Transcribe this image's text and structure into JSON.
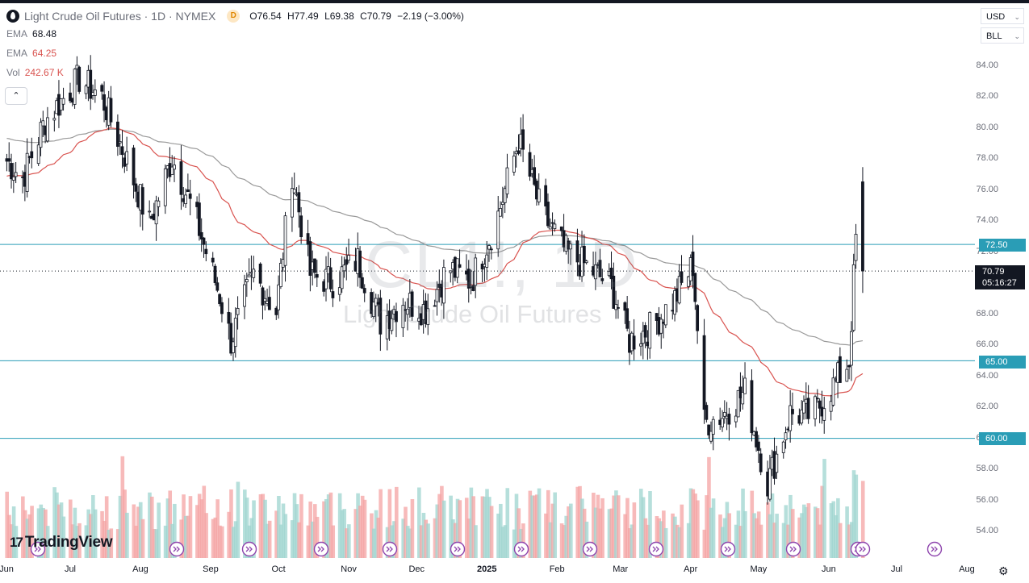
{
  "header": {
    "symbol_title": "Light Crude Oil Futures · 1D · NYMEX",
    "badge": "D",
    "ohlc": {
      "open_label": "O",
      "open": "76.54",
      "high_label": "H",
      "high": "77.49",
      "low_label": "L",
      "low": "69.38",
      "close_label": "C",
      "close": "70.79",
      "change": "−2.19 (−3.00%)"
    },
    "indicators": [
      {
        "name": "EMA",
        "value": "68.48",
        "color": "#787b86"
      },
      {
        "name": "EMA",
        "value": "64.25",
        "color": "#d9534f"
      },
      {
        "name": "Vol",
        "value": "242.67 K",
        "color": "#787b86"
      }
    ],
    "collapse_icon": "chevron-up-icon"
  },
  "scale_controls": {
    "currency": "USD",
    "unit": "BLL"
  },
  "watermark": {
    "ticker": "CL1!, 1D",
    "name": "Light Crude Oil Futures"
  },
  "price_axis": {
    "ticks": [
      "84.00",
      "82.00",
      "80.00",
      "78.00",
      "76.00",
      "74.00",
      "72.00",
      "70.00",
      "68.00",
      "66.00",
      "64.00",
      "62.00",
      "60.00",
      "58.00",
      "56.00",
      "54.00"
    ]
  },
  "horizontal_lines": {
    "levels": [
      "72.50",
      "65.00",
      "60.00"
    ],
    "color": "#2a9db6"
  },
  "current_price": {
    "price": "70.79",
    "countdown": "05:16:27"
  },
  "time_axis": {
    "labels": [
      "Jun",
      "Jul",
      "Aug",
      "Sep",
      "Oct",
      "Nov",
      "Dec",
      "2025",
      "Feb",
      "Mar",
      "Apr",
      "May",
      "Jun",
      "Jul",
      "Aug"
    ]
  },
  "colors": {
    "up": "#131722",
    "down": "#131722",
    "ema_long": "#999999",
    "ema_short": "#d9534f",
    "vol_up": "#9ed4cf",
    "vol_down": "#f4a3a3"
  },
  "branding": {
    "logo_text": "TradingView",
    "logo_mark": "17"
  },
  "chart_data": {
    "type": "candlestick",
    "symbol": "CL1!",
    "timeframe": "1D",
    "ylim": [
      53,
      86
    ],
    "key_levels": [
      72.5,
      65.0,
      60.0
    ],
    "last_bar": {
      "open": 76.54,
      "high": 77.49,
      "low": 69.38,
      "close": 70.79
    },
    "close_path": [
      {
        "date": "2024-06-01",
        "close": 78.2
      },
      {
        "date": "2024-06-10",
        "close": 76.8
      },
      {
        "date": "2024-06-20",
        "close": 80.5
      },
      {
        "date": "2024-07-05",
        "close": 83.2
      },
      {
        "date": "2024-07-15",
        "close": 82.0
      },
      {
        "date": "2024-07-25",
        "close": 78.3
      },
      {
        "date": "2024-08-05",
        "close": 73.8
      },
      {
        "date": "2024-08-15",
        "close": 78.1
      },
      {
        "date": "2024-08-25",
        "close": 74.4
      },
      {
        "date": "2024-09-05",
        "close": 69.2
      },
      {
        "date": "2024-09-10",
        "close": 66.3
      },
      {
        "date": "2024-09-20",
        "close": 70.6
      },
      {
        "date": "2024-09-30",
        "close": 68.2
      },
      {
        "date": "2024-10-07",
        "close": 77.2
      },
      {
        "date": "2024-10-15",
        "close": 70.6
      },
      {
        "date": "2024-10-25",
        "close": 70.1
      },
      {
        "date": "2024-11-05",
        "close": 71.5
      },
      {
        "date": "2024-11-15",
        "close": 67.5
      },
      {
        "date": "2024-11-25",
        "close": 68.9
      },
      {
        "date": "2024-12-05",
        "close": 68.3
      },
      {
        "date": "2024-12-15",
        "close": 71.0
      },
      {
        "date": "2024-12-25",
        "close": 70.1
      },
      {
        "date": "2025-01-05",
        "close": 73.9
      },
      {
        "date": "2025-01-15",
        "close": 79.2
      },
      {
        "date": "2025-01-25",
        "close": 74.6
      },
      {
        "date": "2025-02-05",
        "close": 72.0
      },
      {
        "date": "2025-02-15",
        "close": 71.0
      },
      {
        "date": "2025-02-25",
        "close": 69.8
      },
      {
        "date": "2025-03-05",
        "close": 66.3
      },
      {
        "date": "2025-03-15",
        "close": 67.2
      },
      {
        "date": "2025-03-25",
        "close": 69.0
      },
      {
        "date": "2025-04-02",
        "close": 71.2
      },
      {
        "date": "2025-04-07",
        "close": 61.0
      },
      {
        "date": "2025-04-15",
        "close": 61.5
      },
      {
        "date": "2025-04-25",
        "close": 63.0
      },
      {
        "date": "2025-05-05",
        "close": 57.1
      },
      {
        "date": "2025-05-15",
        "close": 61.6
      },
      {
        "date": "2025-05-25",
        "close": 61.5
      },
      {
        "date": "2025-06-03",
        "close": 63.4
      },
      {
        "date": "2025-06-10",
        "close": 65.0
      },
      {
        "date": "2025-06-13",
        "close": 72.9
      },
      {
        "date": "2025-06-16",
        "close": 70.79
      }
    ]
  }
}
